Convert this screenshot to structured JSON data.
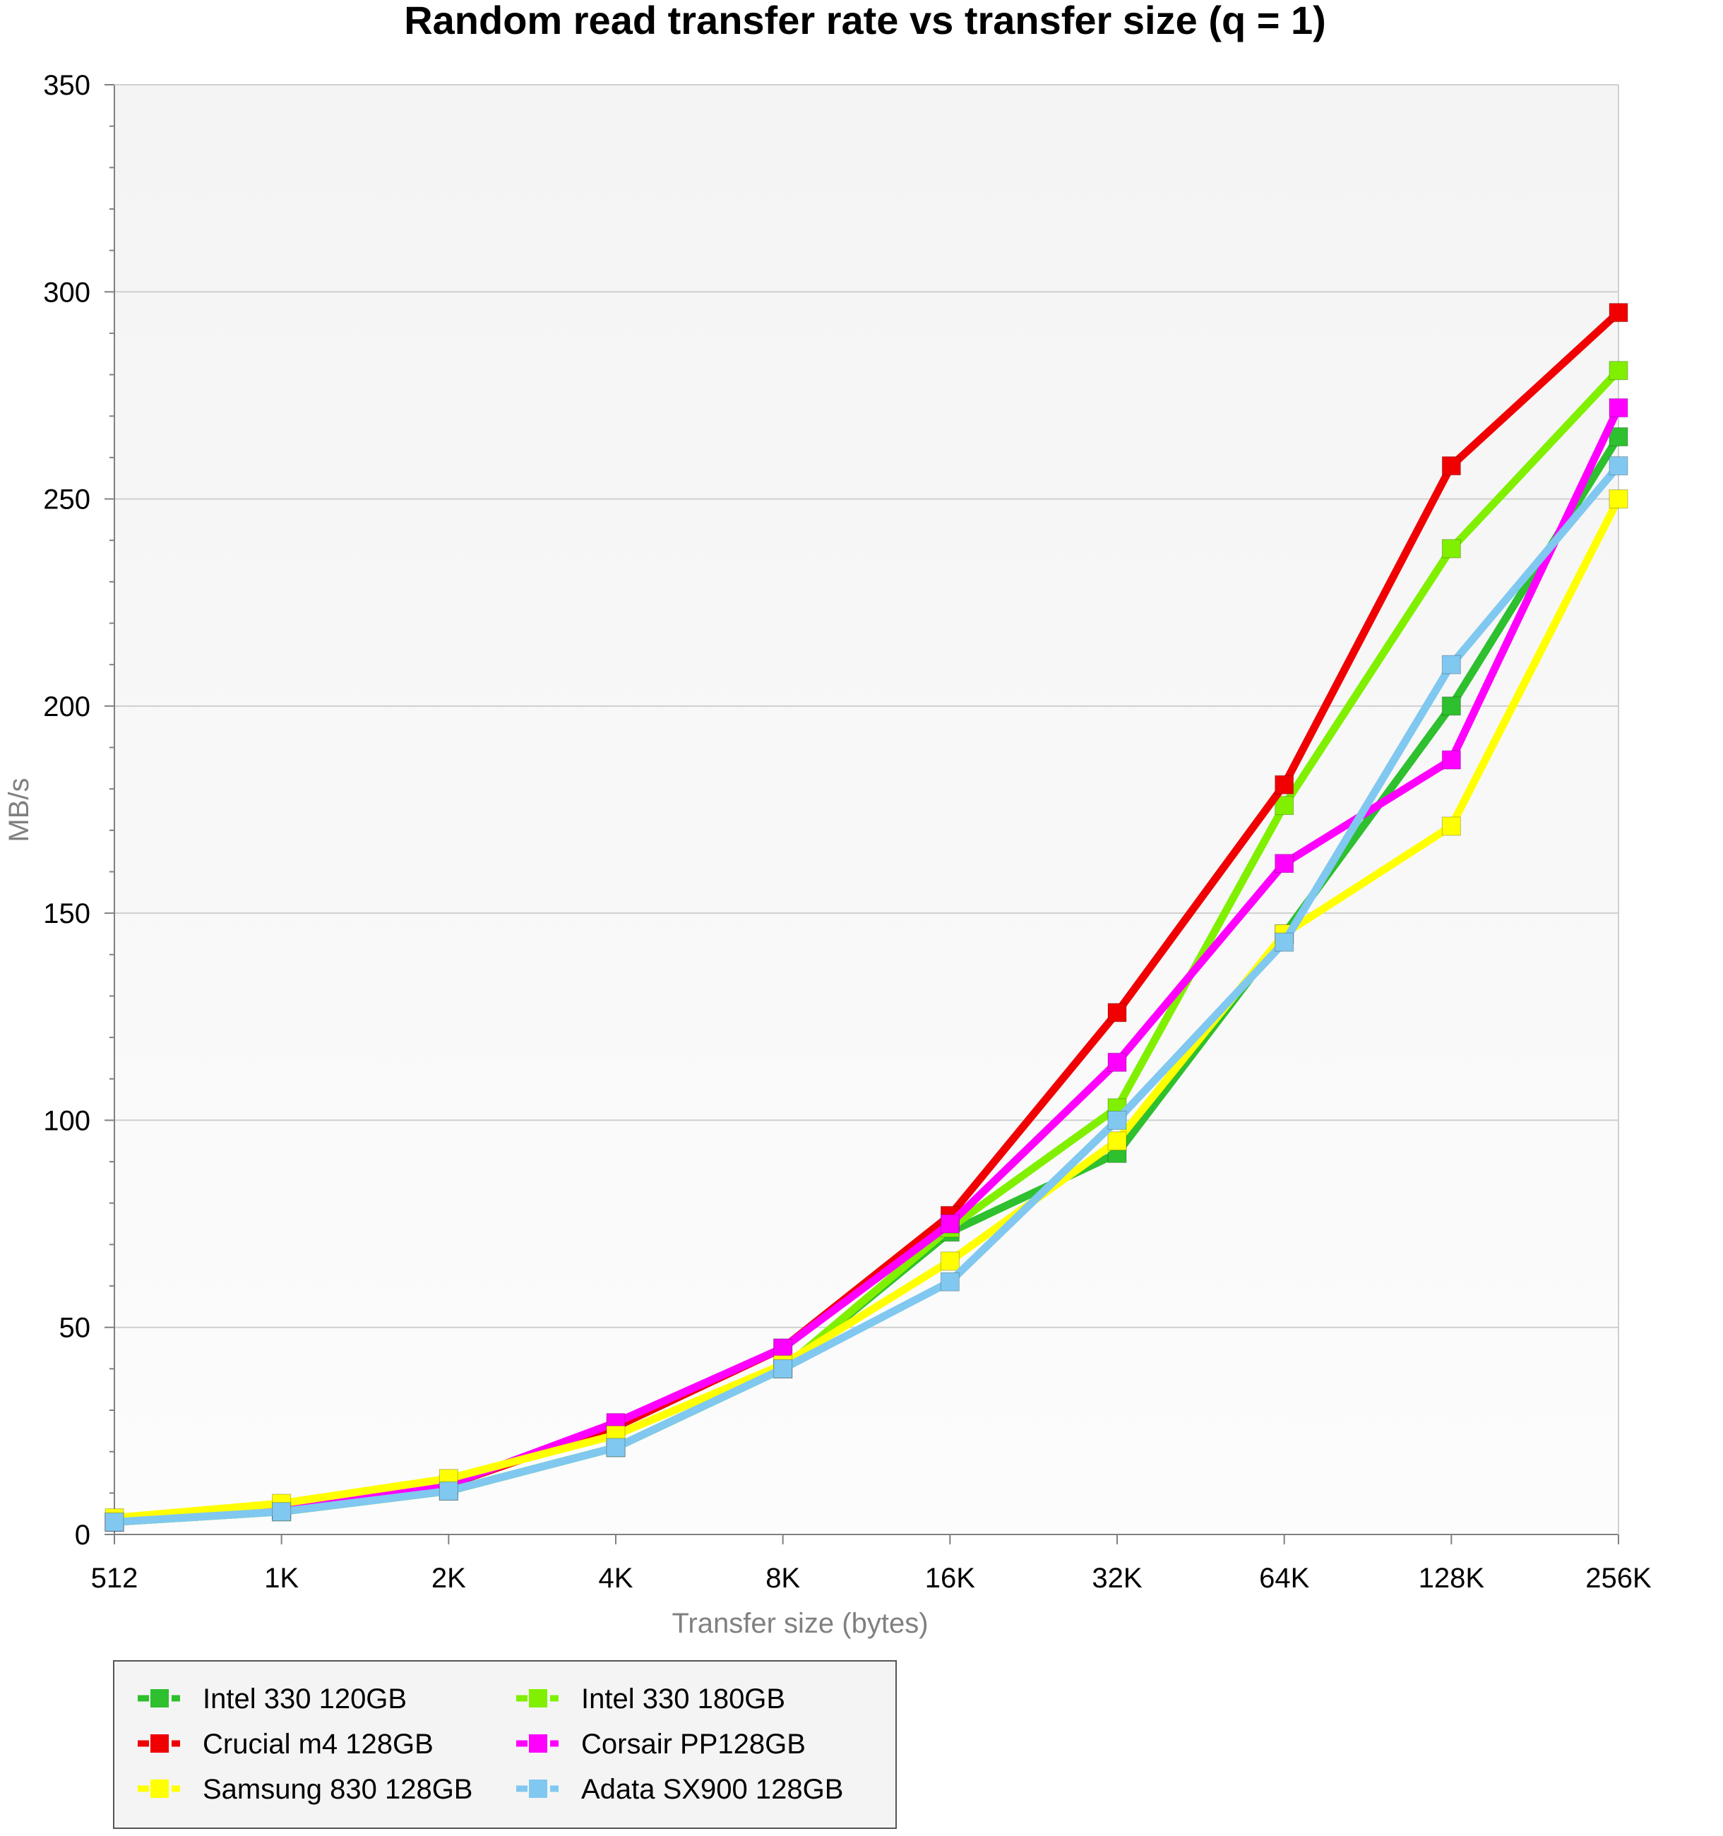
{
  "chart_data": {
    "type": "line",
    "title": "Random read transfer rate vs transfer size (q = 1)",
    "xlabel": "Transfer size (bytes)",
    "ylabel": "MB/s",
    "categories": [
      "512",
      "1K",
      "2K",
      "4K",
      "8K",
      "16K",
      "32K",
      "64K",
      "128K",
      "256K"
    ],
    "ylim": [
      0,
      350
    ],
    "yticks": [
      0,
      50,
      100,
      150,
      200,
      250,
      300,
      350
    ],
    "grid": true,
    "legend_position": "bottom-left",
    "series": [
      {
        "name": "Intel 330 120GB",
        "color": "#2ec02e",
        "values": [
          3,
          5.5,
          10.5,
          21,
          40,
          73,
          92,
          145,
          200,
          265
        ]
      },
      {
        "name": "Intel 330 180GB",
        "color": "#80f000",
        "values": [
          3,
          5.5,
          10.5,
          21,
          40,
          74,
          103,
          176,
          238,
          281
        ]
      },
      {
        "name": "Crucial m4 128GB",
        "color": "#f00000",
        "values": [
          3,
          6,
          12,
          26,
          45,
          77,
          126,
          181,
          258,
          295
        ]
      },
      {
        "name": "Corsair PP128GB",
        "color": "#ff00ff",
        "values": [
          3,
          6,
          12,
          27,
          45,
          75,
          114,
          162,
          187,
          272
        ]
      },
      {
        "name": "Samsung 830 128GB",
        "color": "#ffff00",
        "values": [
          4,
          7.5,
          13.5,
          24,
          41,
          66,
          95,
          145,
          171,
          250
        ]
      },
      {
        "name": "Adata SX900 128GB",
        "color": "#80c8f0",
        "values": [
          3,
          5.5,
          10.5,
          21,
          40,
          61,
          100,
          143,
          210,
          258
        ]
      }
    ]
  },
  "legend": {
    "rows": [
      [
        "Intel 330 120GB",
        "Intel 330 180GB"
      ],
      [
        "Crucial m4 128GB",
        "Corsair PP128GB"
      ],
      [
        "Samsung 830 128GB",
        "Adata SX900 128GB"
      ]
    ]
  }
}
